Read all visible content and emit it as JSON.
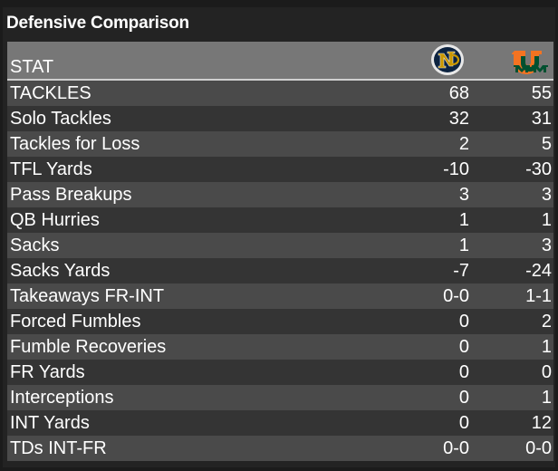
{
  "title": "Defensive Comparison",
  "header": {
    "stat_label": "STAT",
    "team1_logo": "notre-dame-logo-icon",
    "team2_logo": "miami-logo-icon"
  },
  "rows": [
    {
      "label": "TACKLES",
      "team1": "68",
      "team2": "55"
    },
    {
      "label": "Solo Tackles",
      "team1": "32",
      "team2": "31"
    },
    {
      "label": "Tackles for Loss",
      "team1": "2",
      "team2": "5"
    },
    {
      "label": "TFL Yards",
      "team1": "-10",
      "team2": "-30"
    },
    {
      "label": "Pass Breakups",
      "team1": "3",
      "team2": "3"
    },
    {
      "label": "QB Hurries",
      "team1": "1",
      "team2": "1"
    },
    {
      "label": "Sacks",
      "team1": "1",
      "team2": "3"
    },
    {
      "label": "Sacks Yards",
      "team1": "-7",
      "team2": "-24"
    },
    {
      "label": "Takeaways FR-INT",
      "team1": "0-0",
      "team2": "1-1"
    },
    {
      "label": "Forced Fumbles",
      "team1": "0",
      "team2": "2"
    },
    {
      "label": "Fumble Recoveries",
      "team1": "0",
      "team2": "1"
    },
    {
      "label": "FR Yards",
      "team1": "0",
      "team2": "0"
    },
    {
      "label": "Interceptions",
      "team1": "0",
      "team2": "1"
    },
    {
      "label": "INT Yards",
      "team1": "0",
      "team2": "12"
    },
    {
      "label": "TDs INT-FR",
      "team1": "0-0",
      "team2": "0-0"
    }
  ]
}
